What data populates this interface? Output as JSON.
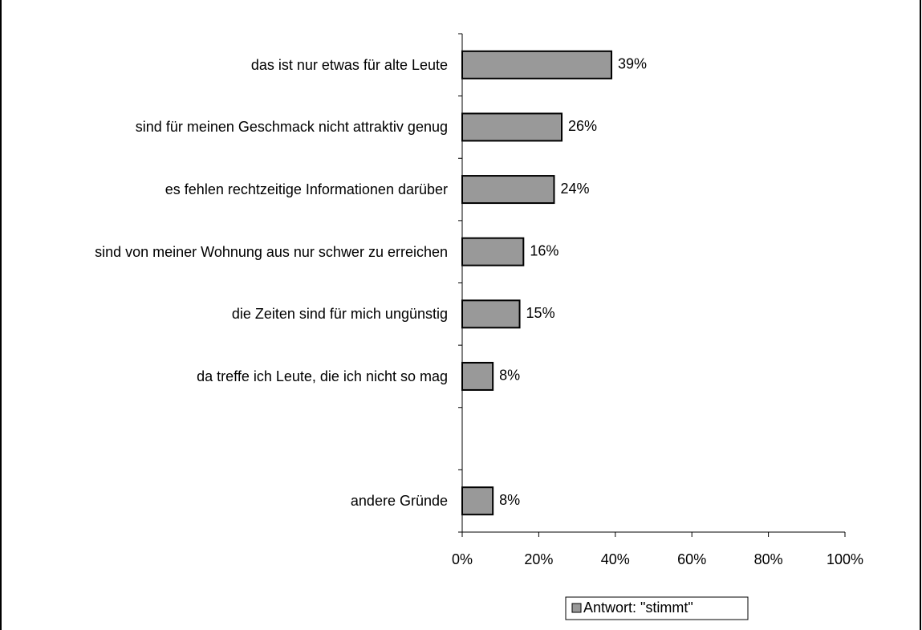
{
  "chart_data": {
    "type": "bar",
    "orientation": "horizontal",
    "categories": [
      "das ist nur etwas für alte Leute",
      "sind für meinen Geschmack nicht attraktiv genug",
      "es fehlen rechtzeitige Informationen darüber",
      "sind von meiner Wohnung aus nur schwer zu erreichen",
      "die Zeiten sind für mich ungünstig",
      "da treffe ich Leute, die ich nicht so mag",
      null,
      "andere Gründe"
    ],
    "series": [
      {
        "name": "Antwort: \"stimmt\"",
        "color": "#999999",
        "values": [
          39,
          26,
          24,
          16,
          15,
          8,
          null,
          8
        ],
        "value_labels": [
          "39%",
          "26%",
          "24%",
          "16%",
          "15%",
          "8%",
          null,
          "8%"
        ]
      }
    ],
    "xlim": [
      0,
      100
    ],
    "xticks": [
      {
        "value": 0,
        "label": "0%"
      },
      {
        "value": 20,
        "label": "20%"
      },
      {
        "value": 40,
        "label": "40%"
      },
      {
        "value": 60,
        "label": "60%"
      },
      {
        "value": 80,
        "label": "80%"
      },
      {
        "value": 100,
        "label": "100%"
      }
    ],
    "grid": false,
    "legend": "bottom"
  }
}
